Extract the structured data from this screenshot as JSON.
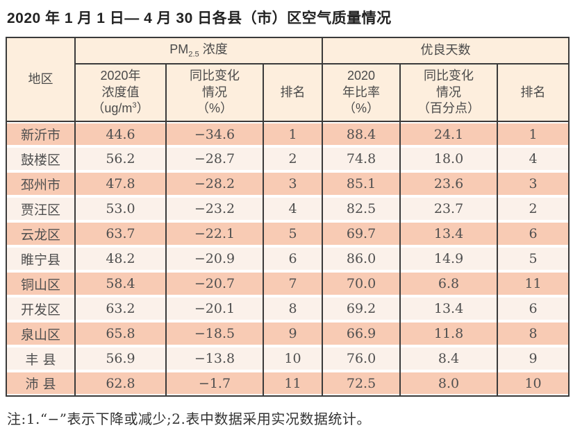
{
  "page": {
    "title": "2020 年 1 月 1 日— 4 月 30 日各县（市）区空气质量情况",
    "note": "注:1.“−”表示下降或减少;2.表中数据采用实况数据统计。"
  },
  "table": {
    "header": {
      "region": "地区",
      "pm_group": {
        "prefix": "PM",
        "sub": "2.5",
        "suffix": " 浓度"
      },
      "good_group": "优良天数",
      "pm_conc": {
        "line1": "2020年",
        "line2": "浓度值",
        "unit_pre": "（ug/m",
        "unit_sup": "3",
        "unit_post": "）"
      },
      "pm_change": "同比变化\n情况\n（%）",
      "pm_rank": "排名",
      "good_ratio": "2020\n年比率\n（%）",
      "good_change": "同比变化\n情况\n（百分点）",
      "good_rank": "排名"
    },
    "rows": [
      {
        "region": "新沂市",
        "pm_value": "44.6",
        "pm_change": "−34.6",
        "pm_rank": "1",
        "good_ratio": "88.4",
        "good_change": "24.1",
        "good_rank": "1"
      },
      {
        "region": "鼓楼区",
        "pm_value": "56.2",
        "pm_change": "−28.7",
        "pm_rank": "2",
        "good_ratio": "74.8",
        "good_change": "18.0",
        "good_rank": "4"
      },
      {
        "region": "邳州市",
        "pm_value": "47.8",
        "pm_change": "−28.2",
        "pm_rank": "3",
        "good_ratio": "85.1",
        "good_change": "23.6",
        "good_rank": "3"
      },
      {
        "region": "贾汪区",
        "pm_value": "53.0",
        "pm_change": "−23.2",
        "pm_rank": "4",
        "good_ratio": "82.5",
        "good_change": "23.7",
        "good_rank": "2"
      },
      {
        "region": "云龙区",
        "pm_value": "63.7",
        "pm_change": "−22.1",
        "pm_rank": "5",
        "good_ratio": "69.7",
        "good_change": "13.4",
        "good_rank": "6"
      },
      {
        "region": "睢宁县",
        "pm_value": "48.2",
        "pm_change": "−20.9",
        "pm_rank": "6",
        "good_ratio": "86.0",
        "good_change": "14.9",
        "good_rank": "5"
      },
      {
        "region": "铜山区",
        "pm_value": "58.4",
        "pm_change": "−20.7",
        "pm_rank": "7",
        "good_ratio": "70.0",
        "good_change": "6.8",
        "good_rank": "11"
      },
      {
        "region": "开发区",
        "pm_value": "63.2",
        "pm_change": "−20.1",
        "pm_rank": "8",
        "good_ratio": "69.2",
        "good_change": "13.4",
        "good_rank": "6"
      },
      {
        "region": "泉山区",
        "pm_value": "65.8",
        "pm_change": "−18.5",
        "pm_rank": "9",
        "good_ratio": "66.9",
        "good_change": "11.8",
        "good_rank": "8"
      },
      {
        "region": "丰 县",
        "pm_value": "56.9",
        "pm_change": "−13.8",
        "pm_rank": "10",
        "good_ratio": "76.0",
        "good_change": "8.4",
        "good_rank": "9"
      },
      {
        "region": "沛 县",
        "pm_value": "62.8",
        "pm_change": "−1.7",
        "pm_rank": "11",
        "good_ratio": "72.5",
        "good_change": "8.0",
        "good_rank": "10"
      }
    ]
  },
  "colors": {
    "row_salmon": "#f8cbb4",
    "row_cream": "#fbf1ea",
    "header_bg": "#fdeedd",
    "border": "#3a3a3a",
    "body_text": "#4f4f4f",
    "title_text": "#222222"
  }
}
